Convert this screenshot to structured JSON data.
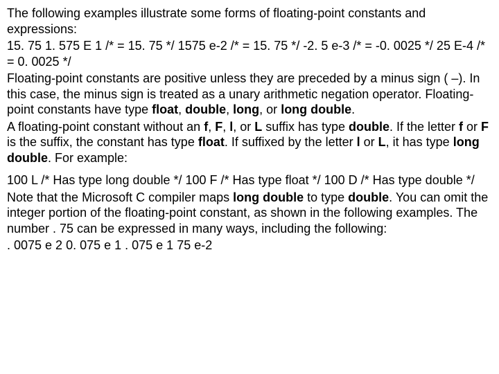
{
  "p1_intro": "The following examples illustrate some forms of floating-point constants and expressions:",
  "p1_examples": "15. 75 1. 575 E 1 /* = 15. 75 */ 1575 e-2 /* = 15. 75 */ -2. 5 e-3 /* = -0. 0025 */ 25 E-4 /* = 0. 0025 */",
  "p1_positive": "Floating-point constants are positive unless they are preceded by a minus sign ( –). In this case, the minus sign is treated as a unary arithmetic negation operator. Floating-point constants have type ",
  "t_float": "float",
  "sep_cs": ", ",
  "t_double": "double",
  "t_long": "long",
  "sep_or": ", or ",
  "t_long_double": "long double",
  "period": ".",
  "p1_suffix_a": "A floating-point constant without an ",
  "t_f": "f",
  "t_F": "F",
  "t_l": "l",
  "t_L": "L",
  "p1_suffix_b": " suffix has type ",
  "p1_suffix_c": ". If the letter ",
  "sep_or2": " or ",
  "p1_suffix_d": " is the suffix, the constant has type ",
  "p1_suffix_e": ". If suffixed by the letter ",
  "p1_suffix_f": ", it has type ",
  "p1_suffix_g": ". For example:",
  "p2_examples": "100 L /* Has type long double */ 100 F /* Has type float */ 100 D /* Has type double */",
  "p2_note_a": "Note that the Microsoft C compiler maps ",
  "p2_note_b": " to type ",
  "p2_note_c": ". You can omit the integer portion of the floating-point constant, as shown in the following examples. The number . 75 can be expressed in many ways, including the following:",
  "p2_examples2": ". 0075 e 2 0. 075 e 1 . 075 e 1 75 e-2"
}
